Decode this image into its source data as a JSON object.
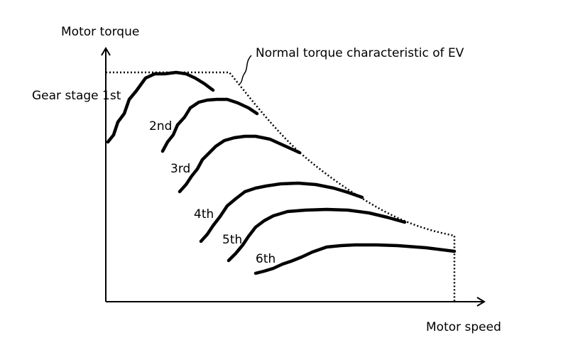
{
  "axes": {
    "y_label": "Motor torque",
    "x_label": "Motor speed"
  },
  "annotation": "Normal torque characteristic of EV",
  "gears": [
    {
      "label": "Gear stage 1st"
    },
    {
      "label": "2nd"
    },
    {
      "label": "3rd"
    },
    {
      "label": "4th"
    },
    {
      "label": "5th"
    },
    {
      "label": "6th"
    }
  ]
}
